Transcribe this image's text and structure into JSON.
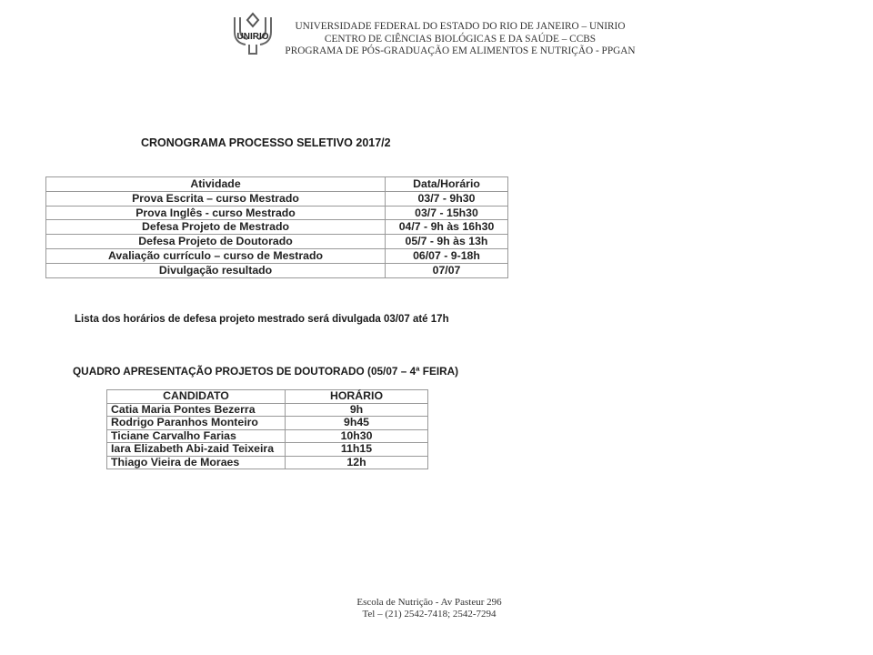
{
  "header": {
    "logo_text": "UNIRIO",
    "lines": [
      "UNIVERSIDADE FEDERAL DO ESTADO DO RIO DE JANEIRO – UNIRIO",
      "CENTRO DE CIÊNCIAS BIOLÓGICAS E DA SAÚDE – CCBS",
      "PROGRAMA DE PÓS-GRADUAÇÃO EM ALIMENTOS E NUTRIÇÃO - PPGAN"
    ]
  },
  "title": "CRONOGRAMA PROCESSO SELETIVO 2017/2",
  "schedule": {
    "headers": [
      "Atividade",
      "Data/Horário"
    ],
    "rows": [
      [
        "Prova Escrita – curso Mestrado",
        "03/7 - 9h30"
      ],
      [
        "Prova Inglês - curso Mestrado",
        "03/7 - 15h30"
      ],
      [
        "Defesa Projeto de Mestrado",
        "04/7 - 9h às 16h30"
      ],
      [
        "Defesa Projeto de Doutorado",
        "05/7 - 9h às 13h"
      ],
      [
        "Avaliação currículo – curso de Mestrado",
        "06/07 - 9-18h"
      ],
      [
        "Divulgação resultado",
        "07/07"
      ]
    ]
  },
  "note": "Lista dos horários de defesa projeto mestrado será divulgada 03/07 até 17h",
  "quadro": {
    "title": "QUADRO APRESENTAÇÃO PROJETOS DE DOUTORADO (05/07 – 4ª FEIRA)",
    "headers": [
      "CANDIDATO",
      "HORÁRIO"
    ],
    "rows": [
      [
        "Catia Maria Pontes Bezerra",
        "9h"
      ],
      [
        "Rodrigo Paranhos Monteiro",
        "9h45"
      ],
      [
        "Ticiane Carvalho Farias",
        "10h30"
      ],
      [
        "Iara Elizabeth Abi-zaid Teixeira",
        "11h15"
      ],
      [
        "Thiago Vieira de Moraes",
        "12h"
      ]
    ]
  },
  "footer": {
    "lines": [
      "Escola de Nutrição - Av Pasteur 296",
      "Tel – (21) 2542-7418; 2542-7294"
    ]
  }
}
